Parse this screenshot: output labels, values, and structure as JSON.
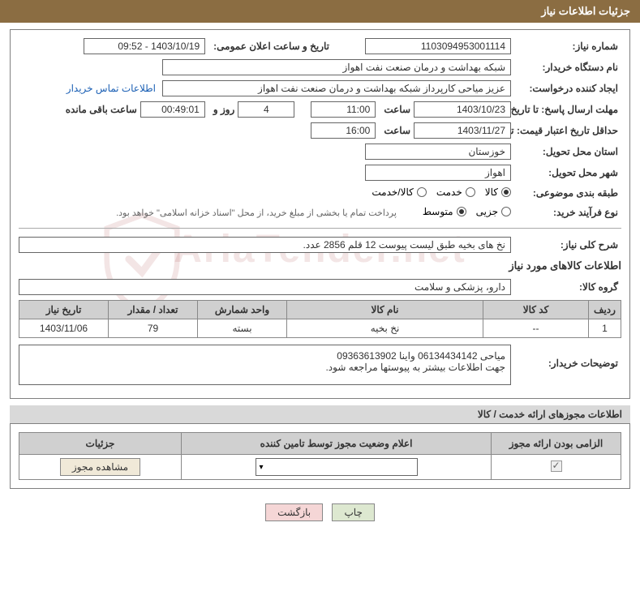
{
  "header": {
    "title": "جزئیات اطلاعات نیاز"
  },
  "fields": {
    "request_no_label": "شماره نیاز:",
    "request_no": "1103094953001114",
    "announce_date_label": "تاریخ و ساعت اعلان عمومی:",
    "announce_date": "1403/10/19 - 09:52",
    "buyer_org_label": "نام دستگاه خریدار:",
    "buyer_org": "شبکه بهداشت و درمان صنعت نفت اهواز",
    "requester_label": "ایجاد کننده درخواست:",
    "requester": "عزیز میاحی کارپرداز شبکه بهداشت و درمان صنعت نفت اهواز",
    "contact_link": "اطلاعات تماس خریدار",
    "deadline_label": "مهلت ارسال پاسخ: تا تاریخ:",
    "deadline_date": "1403/10/23",
    "time_label": "ساعت",
    "deadline_time": "11:00",
    "days_count": "4",
    "days_and": "روز و",
    "countdown": "00:49:01",
    "remaining_label": "ساعت باقی مانده",
    "validity_label": "حداقل تاریخ اعتبار قیمت: تا تاریخ:",
    "validity_date": "1403/11/27",
    "validity_time": "16:00",
    "province_label": "استان محل تحویل:",
    "province": "خوزستان",
    "city_label": "شهر محل تحویل:",
    "city": "اهواز",
    "category_label": "طبقه بندی موضوعی:",
    "purchase_type_label": "نوع فرآیند خرید:",
    "payment_note": "پرداخت تمام یا بخشی از مبلغ خرید، از محل \"اسناد خزانه اسلامی\" خواهد بود.",
    "summary_label": "شرح کلی نیاز:",
    "summary": "نخ های بخیه طبق لیست پیوست 12 قلم 2856 عدد.",
    "goods_info_title": "اطلاعات کالاهای مورد نیاز",
    "goods_group_label": "گروه کالا:",
    "goods_group": "دارو، پزشکی و سلامت",
    "buyer_notes_label": "توضیحات خریدار:",
    "buyer_notes": "میاحی 06134434142 واینا 09363613902\nجهت اطلاعات بیشتر به پیوستها مراجعه شود."
  },
  "radios": {
    "category": {
      "options": [
        "کالا",
        "خدمت",
        "کالا/خدمت"
      ],
      "selected": 0
    },
    "purchase_type": {
      "options": [
        "جزیی",
        "متوسط"
      ],
      "selected": 1
    }
  },
  "goods_table": {
    "headers": [
      "ردیف",
      "کد کالا",
      "نام کالا",
      "واحد شمارش",
      "تعداد / مقدار",
      "تاریخ نیاز"
    ],
    "col_widths": [
      "40px",
      "130px",
      "auto",
      "110px",
      "110px",
      "110px"
    ],
    "rows": [
      [
        "1",
        "--",
        "نخ بخیه",
        "بسته",
        "79",
        "1403/11/06"
      ]
    ]
  },
  "permissions": {
    "section_title": "اطلاعات مجوزهای ارائه خدمت / کالا",
    "headers": [
      "الزامی بودن ارائه مجوز",
      "اعلام وضعیت مجوز توسط تامین کننده",
      "جزئیات"
    ],
    "col_widths": [
      "160px",
      "auto",
      "200px"
    ],
    "mandatory_checked": true,
    "dropdown_value": "",
    "view_btn": "مشاهده مجوز"
  },
  "footer": {
    "print": "چاپ",
    "back": "بازگشت"
  },
  "watermark_text": "AriaTender.net",
  "colors": {
    "header_bg": "#8b6d42",
    "border": "#808080",
    "th_bg": "#d0d0d0"
  }
}
